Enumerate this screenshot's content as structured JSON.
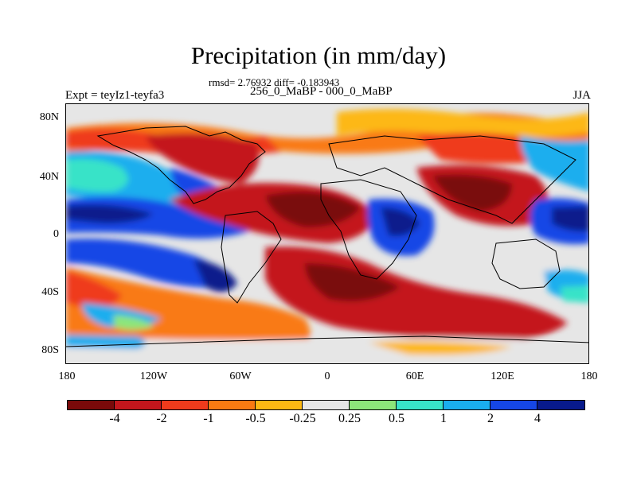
{
  "title": "Precipitation (in mm/day)",
  "stats": "rmsd= 2.76932 diff= -0.183943",
  "expt": "Expt = teyIz1-teyfa3",
  "period": "256_0_MaBP - 000_0_MaBP",
  "season": "JJA",
  "chart_data": {
    "type": "heatmap",
    "title": "Precipitation (in mm/day)",
    "x_ticks": [
      "180",
      "120W",
      "60W",
      "0",
      "60E",
      "120E",
      "180"
    ],
    "y_ticks": [
      "80N",
      "40N",
      "0",
      "40S",
      "80S"
    ],
    "colorbar": {
      "colors": [
        "#7a0a0a",
        "#c4161c",
        "#ef3b1c",
        "#f97a12",
        "#fdb813",
        "#e6e6e6",
        "#8ce67a",
        "#38e3c8",
        "#1aaeee",
        "#1646e6",
        "#081a8c"
      ],
      "labels": [
        "-4",
        "-2",
        "-1",
        "-0.5",
        "-0.25",
        "0.25",
        "0.5",
        "1",
        "2",
        "4"
      ]
    }
  }
}
